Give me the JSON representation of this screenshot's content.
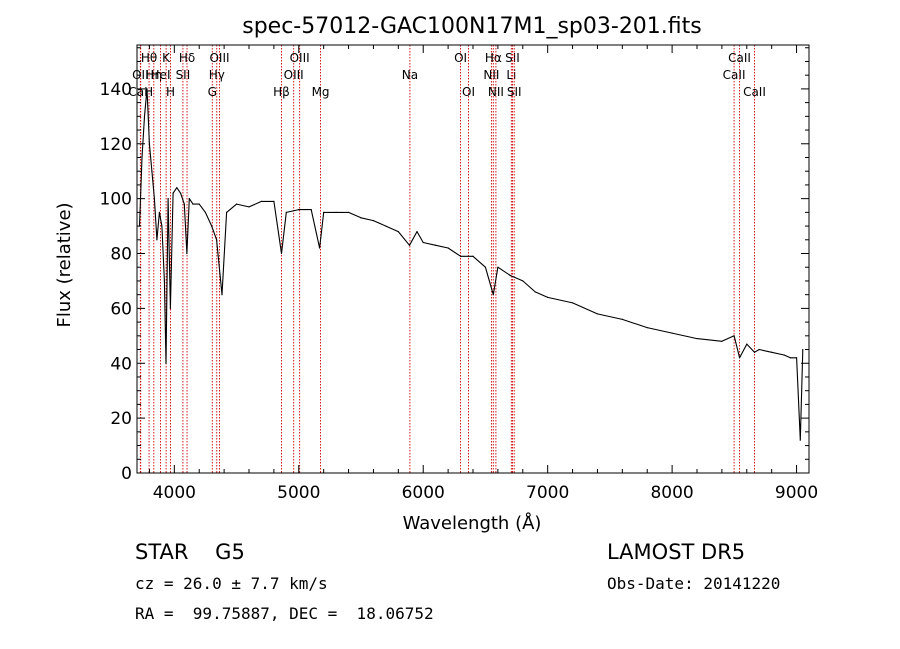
{
  "chart_data": {
    "type": "line",
    "title": "spec-57012-GAC100N17M1_sp03-201.fits",
    "xlabel": "Wavelength (Å)",
    "ylabel": "Flux (relative)",
    "xlim": [
      3700,
      9100
    ],
    "ylim": [
      0,
      156
    ],
    "x_ticks": [
      4000,
      5000,
      6000,
      7000,
      8000,
      9000
    ],
    "y_ticks": [
      0,
      20,
      40,
      60,
      80,
      100,
      120,
      140
    ],
    "grid": false,
    "line_color": "#000000",
    "marker_color": "#cc0000",
    "series": [
      {
        "x": [
          3720,
          3740,
          3760,
          3780,
          3800,
          3820,
          3840,
          3860,
          3880,
          3900,
          3920,
          3933,
          3950,
          3968,
          3990,
          4020,
          4050,
          4080,
          4101,
          4120,
          4150,
          4200,
          4250,
          4300,
          4340,
          4383,
          4420,
          4500,
          4600,
          4700,
          4800,
          4861,
          4900,
          5000,
          5100,
          5167,
          5200,
          5300,
          5400,
          5500,
          5600,
          5700,
          5800,
          5890,
          5950,
          6000,
          6100,
          6200,
          6300,
          6400,
          6500,
          6563,
          6600,
          6700,
          6800,
          6900,
          7000,
          7200,
          7400,
          7600,
          7800,
          8000,
          8200,
          8400,
          8498,
          8542,
          8600,
          8662,
          8700,
          8800,
          8900,
          8950,
          9000,
          9030,
          9050
        ],
        "y": [
          90,
          115,
          130,
          140,
          120,
          110,
          100,
          85,
          95,
          90,
          70,
          40,
          100,
          60,
          102,
          104,
          102,
          98,
          80,
          100,
          98,
          98,
          95,
          90,
          85,
          65,
          95,
          98,
          97,
          99,
          99,
          80,
          95,
          96,
          96,
          82,
          95,
          95,
          95,
          93,
          92,
          90,
          88,
          83,
          88,
          84,
          83,
          82,
          79,
          79,
          75,
          65,
          75,
          72,
          70,
          66,
          64,
          62,
          58,
          56,
          53,
          51,
          49,
          48,
          50,
          42,
          47,
          44,
          45,
          44,
          43,
          42,
          42,
          12,
          45
        ]
      }
    ],
    "lines": [
      {
        "label": "Hθ",
        "x": 3797,
        "row": 1
      },
      {
        "label": "OII",
        "x": 3727,
        "row": 2
      },
      {
        "label": "Hη",
        "x": 3835,
        "row": 2
      },
      {
        "label": "CaH",
        "x": 3730,
        "row": 3
      },
      {
        "label": "HeI",
        "x": 3889,
        "row": 2
      },
      {
        "label": "K",
        "x": 3934,
        "row": 1
      },
      {
        "label": "H",
        "x": 3969,
        "row": 3
      },
      {
        "label": "SII",
        "x": 4069,
        "row": 2
      },
      {
        "label": "Hδ",
        "x": 4102,
        "row": 1
      },
      {
        "label": "Hγ",
        "x": 4341,
        "row": 2
      },
      {
        "label": "G",
        "x": 4305,
        "row": 3
      },
      {
        "label": "OIII",
        "x": 4363,
        "row": 1
      },
      {
        "label": "Hβ",
        "x": 4861,
        "row": 3
      },
      {
        "label": "OIII",
        "x": 4959,
        "row": 2
      },
      {
        "label": "OIII",
        "x": 5007,
        "row": 1
      },
      {
        "label": "Mg",
        "x": 5175,
        "row": 3
      },
      {
        "label": "Na",
        "x": 5893,
        "row": 2
      },
      {
        "label": "OI",
        "x": 6300,
        "row": 1
      },
      {
        "label": "OI",
        "x": 6364,
        "row": 3
      },
      {
        "label": "NII",
        "x": 6548,
        "row": 2
      },
      {
        "label": "Hα",
        "x": 6563,
        "row": 1
      },
      {
        "label": "NII",
        "x": 6584,
        "row": 3
      },
      {
        "label": "Li",
        "x": 6708,
        "row": 2
      },
      {
        "label": "SII",
        "x": 6717,
        "row": 1
      },
      {
        "label": "SII",
        "x": 6731,
        "row": 3
      },
      {
        "label": "CaII",
        "x": 8498,
        "row": 2
      },
      {
        "label": "CaII",
        "x": 8542,
        "row": 1
      },
      {
        "label": "CaII",
        "x": 8662,
        "row": 3
      }
    ]
  },
  "info": {
    "class_text": "STAR    G5",
    "survey_text": "LAMOST DR5",
    "cz_text": "cz = 26.0 ± 7.7 km/s",
    "obs_date_text": "Obs-Date: 20141220",
    "radec_text": "RA =  99.75887, DEC =  18.06752"
  }
}
